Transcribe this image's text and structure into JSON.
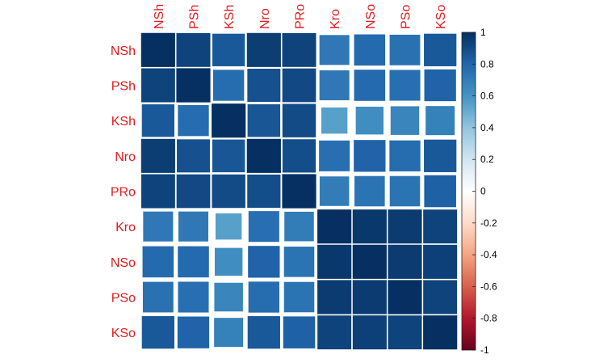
{
  "chart_data": {
    "type": "heatmap",
    "title": "",
    "variables": [
      "NSh",
      "PSh",
      "KSh",
      "Nro",
      "PRo",
      "Kro",
      "NSo",
      "PSo",
      "KSo"
    ],
    "matrix": [
      [
        1.0,
        0.93,
        0.85,
        0.95,
        0.93,
        0.72,
        0.78,
        0.75,
        0.85
      ],
      [
        0.93,
        1.0,
        0.77,
        0.88,
        0.91,
        0.72,
        0.78,
        0.76,
        0.81
      ],
      [
        0.85,
        0.77,
        1.0,
        0.86,
        0.9,
        0.55,
        0.62,
        0.66,
        0.68
      ],
      [
        0.95,
        0.88,
        0.86,
        1.0,
        0.89,
        0.76,
        0.81,
        0.77,
        0.85
      ],
      [
        0.93,
        0.91,
        0.9,
        0.89,
        1.0,
        0.7,
        0.74,
        0.74,
        0.82
      ],
      [
        0.72,
        0.72,
        0.55,
        0.76,
        0.7,
        1.0,
        0.97,
        0.96,
        0.93
      ],
      [
        0.78,
        0.78,
        0.62,
        0.81,
        0.74,
        0.97,
        1.0,
        0.96,
        0.94
      ],
      [
        0.75,
        0.76,
        0.66,
        0.77,
        0.74,
        0.96,
        0.96,
        1.0,
        0.93
      ],
      [
        0.85,
        0.81,
        0.68,
        0.85,
        0.82,
        0.93,
        0.94,
        0.93,
        1.0
      ]
    ],
    "color_scale": {
      "min": -1,
      "max": 1,
      "ticks": [
        "1",
        "0.8",
        "0.6",
        "0.4",
        "0.2",
        "0",
        "-0.2",
        "-0.4",
        "-0.6",
        "-0.8",
        "-1"
      ],
      "colors": [
        "#67001F",
        "#B2182B",
        "#D6604D",
        "#F4A582",
        "#FDDBC7",
        "#FFFFFF",
        "#D1E5F0",
        "#92C5DE",
        "#4393C3",
        "#2166AC",
        "#053061"
      ]
    },
    "label_color": "#E31A1C"
  }
}
